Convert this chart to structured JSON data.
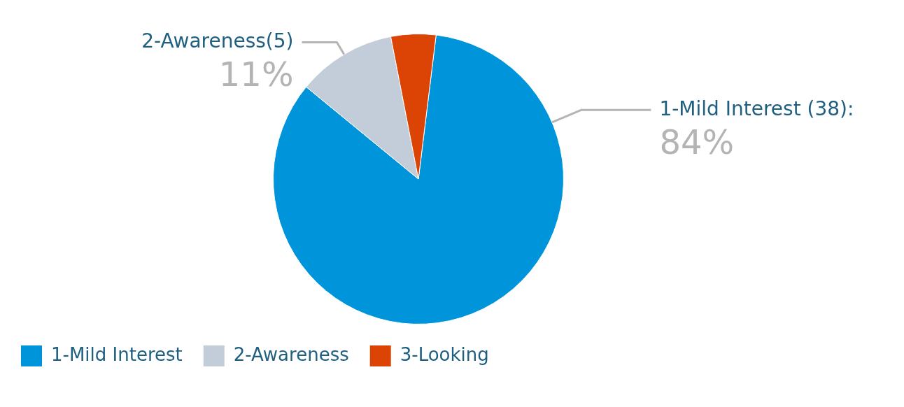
{
  "chart_data": {
    "type": "pie",
    "categories": [
      "1-Mild Interest",
      "2-Awareness",
      "3-Looking"
    ],
    "values": [
      84,
      11,
      5
    ],
    "colors": [
      "#0095db",
      "#c3cdd9",
      "#dc4405"
    ],
    "value_labels": [
      "84%",
      "11%",
      null
    ],
    "annotations": [
      {
        "text": "1-Mild Interest (38):",
        "x": "1-Mild Interest"
      },
      {
        "text": "2-Awareness(5)",
        "x": "2-Awareness"
      }
    ],
    "legend": "bottom left"
  }
}
